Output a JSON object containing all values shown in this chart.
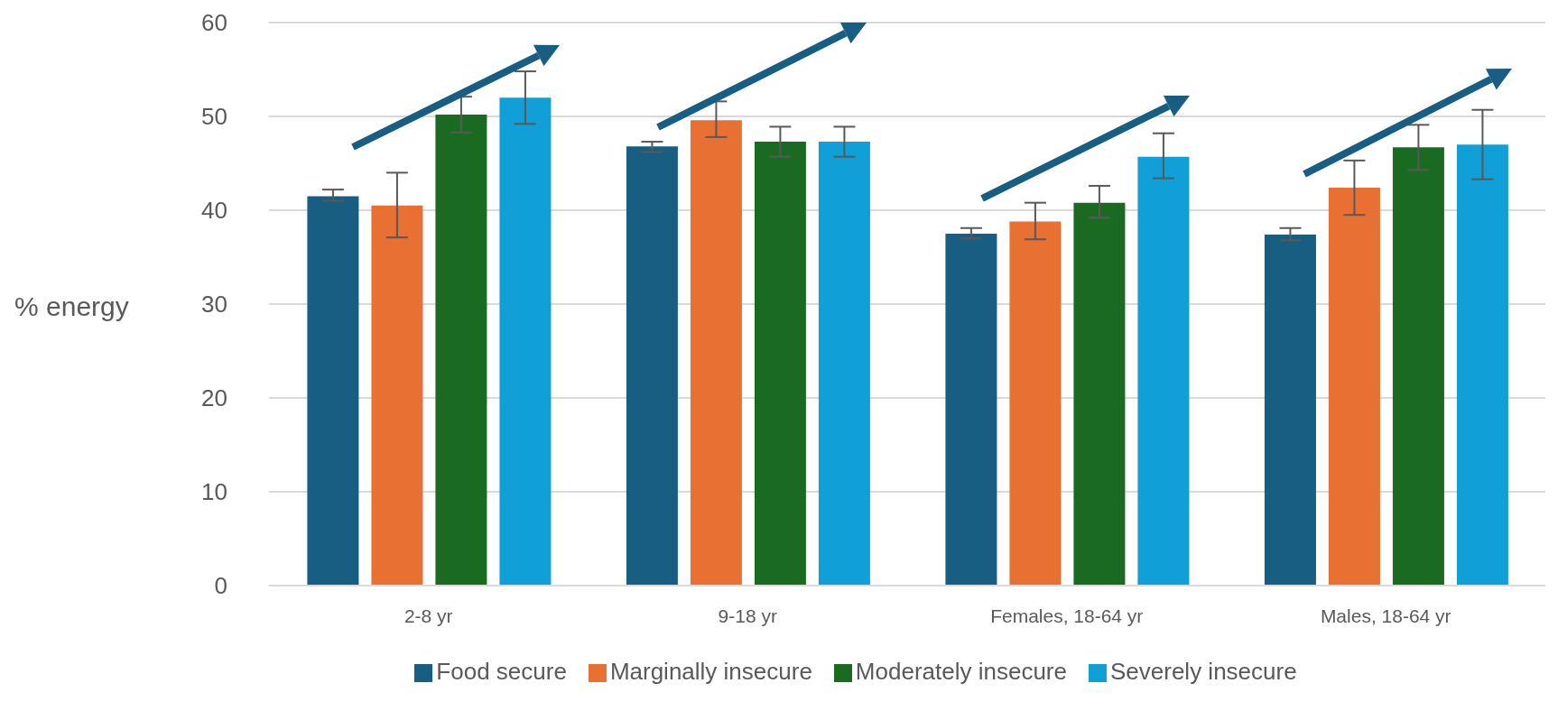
{
  "chart_data": {
    "type": "bar",
    "ylabel": "% energy",
    "categories": [
      "2-8 yr",
      "9-18 yr",
      "Females, 18-64 yr",
      "Males, 18-64 yr"
    ],
    "series": [
      {
        "name": "Food secure",
        "color": "#175e82",
        "values": [
          41.5,
          46.8,
          37.5,
          37.4
        ],
        "errors": [
          [
            41.0,
            42.2
          ],
          [
            46.2,
            47.3
          ],
          [
            37.0,
            38.1
          ],
          [
            36.8,
            38.1
          ]
        ]
      },
      {
        "name": "Marginally insecure",
        "color": "#e87032",
        "values": [
          40.5,
          49.6,
          38.8,
          42.4
        ],
        "errors": [
          [
            37.1,
            44.0
          ],
          [
            47.8,
            51.6
          ],
          [
            36.9,
            40.8
          ],
          [
            39.5,
            45.3
          ]
        ]
      },
      {
        "name": "Moderately insecure",
        "color": "#1b6a22",
        "values": [
          50.2,
          47.3,
          40.8,
          46.7
        ],
        "errors": [
          [
            48.3,
            52.1
          ],
          [
            45.7,
            48.9
          ],
          [
            39.2,
            42.6
          ],
          [
            44.3,
            49.1
          ]
        ]
      },
      {
        "name": "Severely insecure",
        "color": "#109fd6",
        "values": [
          52.0,
          47.3,
          45.7,
          47.0
        ],
        "errors": [
          [
            49.2,
            54.8
          ],
          [
            45.7,
            48.9
          ],
          [
            43.4,
            48.2
          ],
          [
            43.3,
            50.7
          ]
        ]
      }
    ],
    "ylim": [
      0,
      60
    ],
    "yticks": [
      0,
      10,
      20,
      30,
      40,
      50,
      60
    ],
    "grid": "y",
    "legend": "bottom"
  }
}
